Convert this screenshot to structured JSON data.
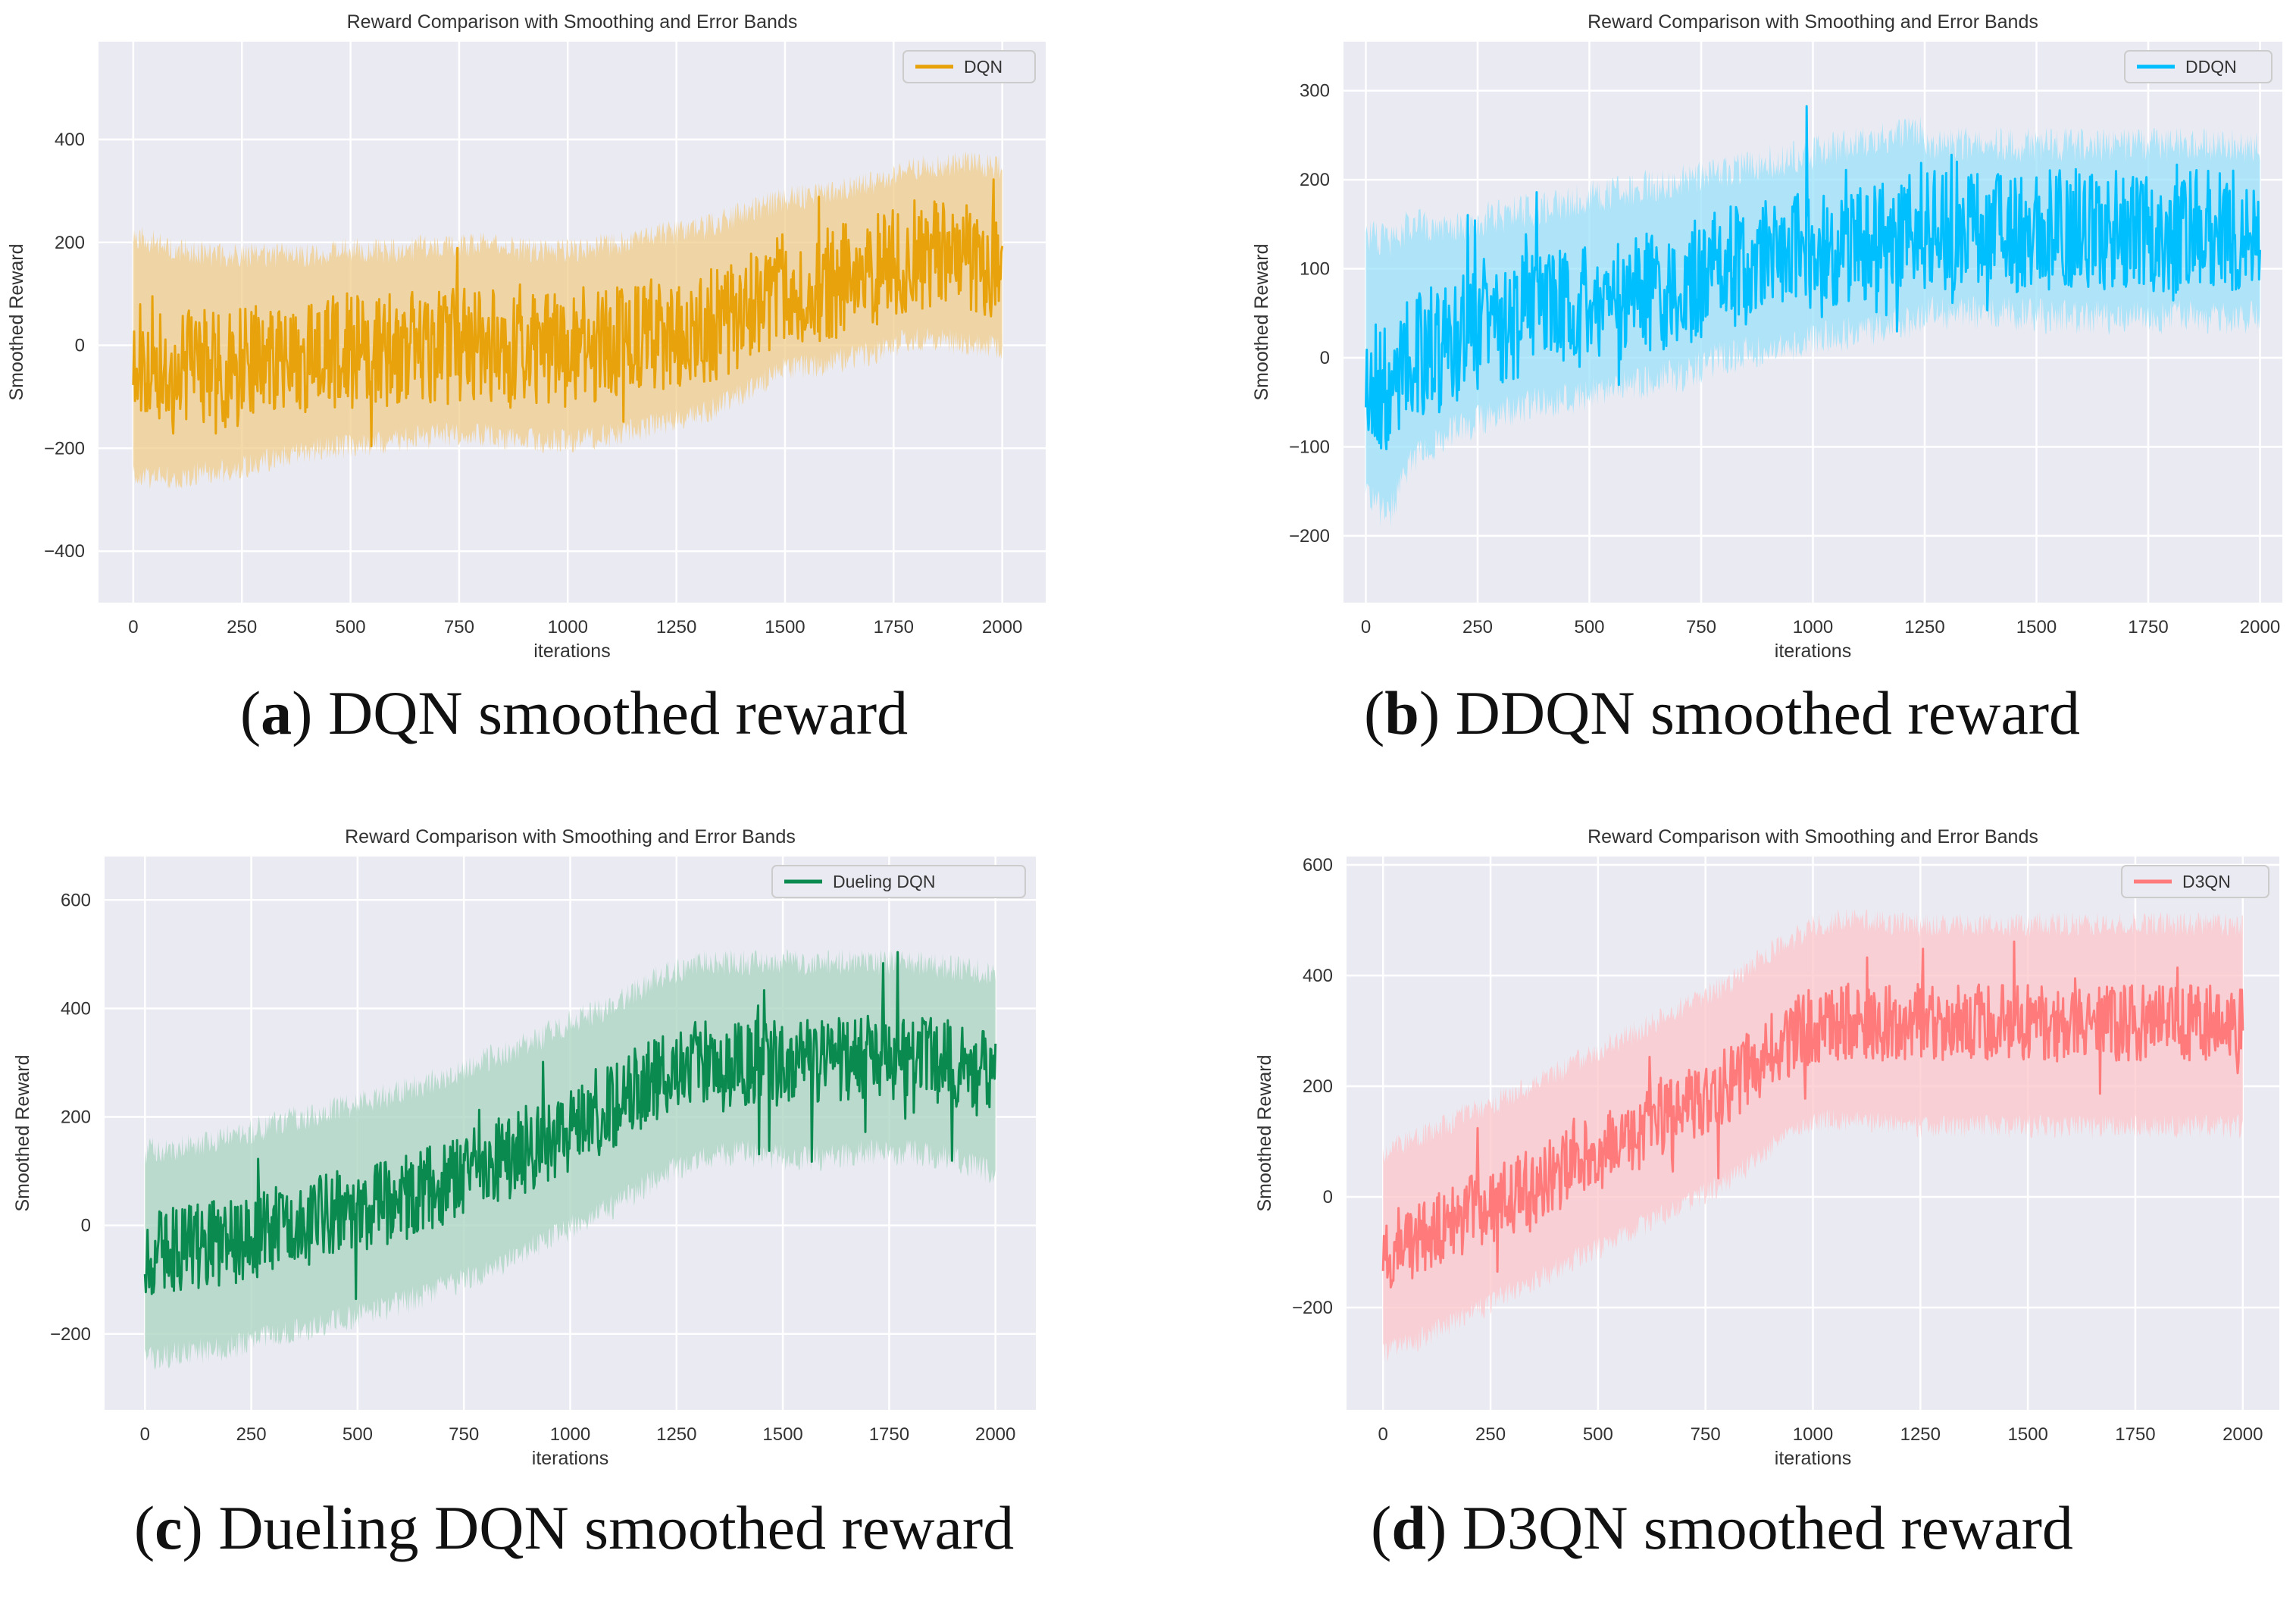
{
  "figure_captions": [
    {
      "letter": "a",
      "text": "DQN smoothed reward"
    },
    {
      "letter": "b",
      "text": "DDQN smoothed reward"
    },
    {
      "letter": "c",
      "text": "Dueling DQN smoothed reward"
    },
    {
      "letter": "d",
      "text": "D3QN smoothed reward"
    }
  ],
  "chart_data": [
    {
      "type": "line",
      "title": "Reward Comparison with Smoothing and Error Bands",
      "xlabel": "iterations",
      "ylabel": "Smoothed Reward",
      "xlim": [
        -80,
        2100
      ],
      "ylim": [
        -500,
        590
      ],
      "xticks": [
        0,
        250,
        500,
        750,
        1000,
        1250,
        1500,
        1750,
        2000
      ],
      "yticks": [
        -400,
        -200,
        0,
        200,
        400
      ],
      "legend": "top-right",
      "grid": true,
      "series": [
        {
          "name": "DQN",
          "color": "#e8a30c",
          "band_color": "#f0cd8c",
          "x": [
            0,
            100,
            200,
            300,
            400,
            500,
            600,
            700,
            800,
            900,
            1000,
            1100,
            1200,
            1300,
            1400,
            1500,
            1600,
            1700,
            1800,
            1900,
            2000
          ],
          "y": [
            -20,
            -40,
            -40,
            -30,
            -20,
            -10,
            -10,
            0,
            0,
            -10,
            -10,
            0,
            20,
            30,
            60,
            110,
            120,
            140,
            180,
            170,
            160
          ],
          "band_low": [
            -230,
            -230,
            -220,
            -200,
            -180,
            -170,
            -160,
            -150,
            -150,
            -160,
            -160,
            -150,
            -130,
            -110,
            -70,
            -20,
            -10,
            10,
            40,
            30,
            20
          ],
          "band_high": [
            190,
            160,
            150,
            150,
            150,
            160,
            160,
            170,
            170,
            160,
            160,
            170,
            190,
            200,
            230,
            260,
            270,
            290,
            320,
            330,
            320
          ],
          "spread": 110,
          "band_spread": 50,
          "seed": 11
        }
      ]
    },
    {
      "type": "line",
      "title": "Reward Comparison with Smoothing and Error Bands",
      "xlabel": "iterations",
      "ylabel": "Smoothed Reward",
      "xlim": [
        -50,
        2050
      ],
      "ylim": [
        -275,
        355
      ],
      "xticks": [
        0,
        250,
        500,
        750,
        1000,
        1250,
        1500,
        1750,
        2000
      ],
      "yticks": [
        -200,
        -100,
        0,
        100,
        200,
        300
      ],
      "legend": "top-right",
      "grid": true,
      "series": [
        {
          "name": "DDQN",
          "color": "#00bfff",
          "band_color": "#9be0fa",
          "x": [
            0,
            50,
            100,
            200,
            300,
            400,
            500,
            600,
            700,
            800,
            900,
            1000,
            1100,
            1200,
            1240,
            1260,
            1400,
            1600,
            1800,
            2000
          ],
          "y": [
            -20,
            -40,
            0,
            20,
            40,
            50,
            60,
            70,
            80,
            100,
            110,
            120,
            130,
            140,
            150,
            145,
            145,
            142,
            143,
            140
          ],
          "band_low": [
            -130,
            -160,
            -100,
            -60,
            -40,
            -30,
            -20,
            -10,
            0,
            20,
            30,
            40,
            50,
            60,
            60,
            70,
            70,
            65,
            65,
            65
          ],
          "band_high": [
            120,
            110,
            130,
            130,
            140,
            150,
            160,
            170,
            180,
            190,
            200,
            210,
            220,
            230,
            240,
            220,
            220,
            218,
            220,
            218
          ],
          "spread": 70,
          "band_spread": 40,
          "seed": 23
        }
      ]
    },
    {
      "type": "line",
      "title": "Reward Comparison with Smoothing and Error Bands",
      "xlabel": "iterations",
      "ylabel": "Smoothed Reward",
      "xlim": [
        -95,
        2095
      ],
      "ylim": [
        -340,
        680
      ],
      "xticks": [
        0,
        250,
        500,
        750,
        1000,
        1250,
        1500,
        1750,
        2000
      ],
      "yticks": [
        -200,
        0,
        200,
        400,
        600
      ],
      "legend": "top-right",
      "grid": true,
      "series": [
        {
          "name": "Dueling DQN",
          "color": "#0a8a4f",
          "band_color": "#a8d4c0",
          "x": [
            0,
            100,
            200,
            300,
            400,
            500,
            600,
            700,
            800,
            900,
            1000,
            1100,
            1200,
            1300,
            1400,
            1500,
            1600,
            1700,
            1800,
            1900,
            2000
          ],
          "y": [
            -50,
            -40,
            -30,
            -10,
            10,
            30,
            50,
            80,
            110,
            140,
            180,
            220,
            270,
            300,
            300,
            300,
            300,
            310,
            310,
            300,
            280
          ],
          "band_low": [
            -220,
            -210,
            -200,
            -180,
            -160,
            -140,
            -120,
            -90,
            -60,
            -20,
            20,
            60,
            110,
            150,
            160,
            150,
            150,
            160,
            160,
            150,
            120
          ],
          "band_high": [
            110,
            120,
            140,
            160,
            180,
            200,
            220,
            250,
            280,
            310,
            350,
            380,
            430,
            460,
            460,
            460,
            460,
            460,
            460,
            450,
            440
          ],
          "spread": 80,
          "band_spread": 50,
          "seed": 37
        }
      ]
    },
    {
      "type": "line",
      "title": "Reward Comparison with Smoothing and Error Bands",
      "xlabel": "iterations",
      "ylabel": "Smoothed Reward",
      "xlim": [
        -85,
        2085
      ],
      "ylim": [
        -385,
        615
      ],
      "xticks": [
        0,
        250,
        500,
        750,
        1000,
        1250,
        1500,
        1750,
        2000
      ],
      "yticks": [
        -200,
        0,
        200,
        400,
        600
      ],
      "legend": "top-right",
      "grid": true,
      "series": [
        {
          "name": "D3QN",
          "color": "#ff7b7b",
          "band_color": "#fcc6c9",
          "x": [
            0,
            100,
            200,
            300,
            400,
            500,
            600,
            700,
            800,
            900,
            950,
            1000,
            1100,
            1200,
            1400,
            1600,
            1800,
            2000
          ],
          "y": [
            -100,
            -70,
            -30,
            0,
            40,
            80,
            120,
            160,
            200,
            260,
            290,
            310,
            320,
            315,
            315,
            312,
            315,
            310
          ],
          "band_low": [
            -260,
            -230,
            -190,
            -150,
            -110,
            -70,
            -30,
            10,
            50,
            110,
            140,
            160,
            160,
            150,
            150,
            150,
            150,
            150
          ],
          "band_high": [
            60,
            90,
            130,
            160,
            200,
            240,
            280,
            320,
            360,
            420,
            440,
            470,
            480,
            470,
            470,
            470,
            470,
            470
          ],
          "spread": 70,
          "band_spread": 45,
          "seed": 53
        }
      ]
    }
  ]
}
